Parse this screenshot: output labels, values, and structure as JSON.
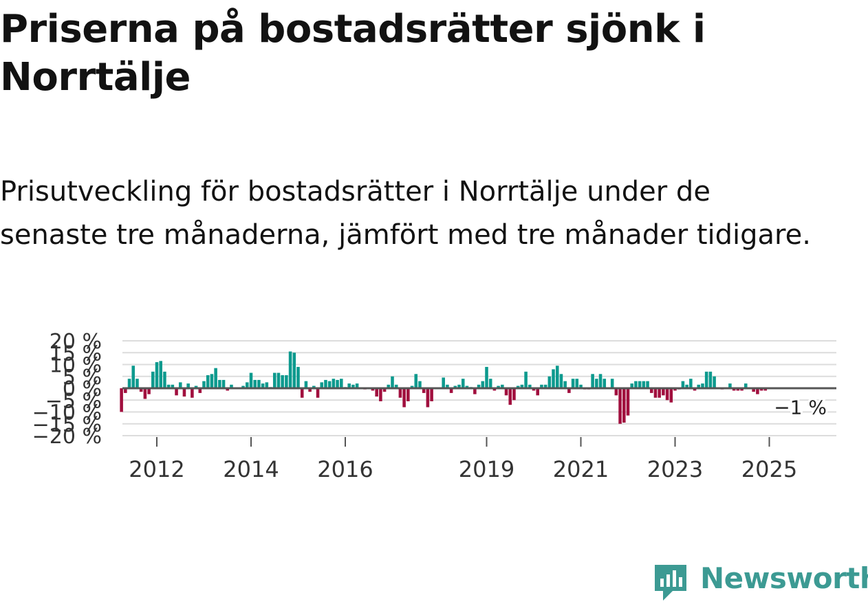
{
  "header": {
    "title": "Priserna på bostadsrätter sjönk i Norrtälje",
    "subtitle": "Prisutveckling för bostadsrätter i Norrtälje under de senaste tre månaderna, jämfört med tre månader tidigare."
  },
  "brand": {
    "name": "Newsworthy",
    "color": "#3c9a93",
    "icon": "newsworthy-logo-icon"
  },
  "colors": {
    "positive": "#0d9a8e",
    "negative": "#a10f3e",
    "grid": "#dcdcdc",
    "zero": "#555555"
  },
  "chart_data": {
    "type": "bar",
    "title": "",
    "xlabel": "",
    "ylabel": "",
    "ylim": [
      -20,
      20
    ],
    "yticks": [
      20,
      15,
      10,
      5,
      0,
      -5,
      -10,
      -15,
      -20
    ],
    "ytick_labels": [
      "20 %",
      "15 %",
      "10 %",
      "5 %",
      "0 %",
      "−5 %",
      "−10 %",
      "−15 %",
      "−20 %"
    ],
    "xticks": [
      2012,
      2014,
      2016,
      2019,
      2021,
      2023,
      2025
    ],
    "xtick_labels": [
      "2012",
      "2014",
      "2016",
      "2019",
      "2021",
      "2023",
      "2025"
    ],
    "start": {
      "year": 2011,
      "month": 4
    },
    "values": [
      -10,
      -2,
      4,
      9.5,
      4,
      -1.5,
      -4.5,
      -2.5,
      7,
      11,
      11.5,
      7,
      1.5,
      1.5,
      -3,
      2.5,
      -3.5,
      2,
      -4,
      1,
      -2,
      3,
      5.5,
      6,
      8.5,
      3.5,
      3.5,
      -1,
      1.5,
      0,
      0,
      1,
      2.5,
      6.5,
      3.5,
      3.5,
      2,
      2.5,
      0.5,
      6.5,
      6.5,
      5.5,
      5.5,
      15.5,
      15,
      9,
      -4,
      3,
      -1.5,
      1,
      -4,
      2.5,
      3.5,
      3,
      4,
      3.5,
      4,
      0.5,
      2,
      1.5,
      2,
      0,
      -0.5,
      0,
      -1,
      -3.5,
      -5.5,
      -1.5,
      1.5,
      5,
      1.5,
      -4,
      -8,
      -5.5,
      1,
      6,
      3,
      -2,
      -8,
      -5.5,
      0,
      0,
      4.5,
      1.5,
      -2,
      1,
      1.5,
      4,
      1,
      0.5,
      -2.5,
      1.5,
      3,
      9,
      4,
      -1,
      1,
      1.5,
      -3,
      -7,
      -5,
      1,
      1.5,
      7,
      1.5,
      -1,
      -3,
      1.5,
      1.5,
      5,
      8,
      9.5,
      6,
      3,
      -2,
      4,
      4,
      1.5,
      -0.5,
      -0.5,
      6,
      4,
      6,
      4,
      0,
      4,
      -3,
      -15,
      -14.5,
      -11.5,
      2,
      3,
      3,
      3,
      3,
      -2,
      -4,
      -4,
      -3,
      -5,
      -6,
      -1,
      -0.5,
      3,
      1.5,
      4,
      -1,
      1.5,
      2,
      7,
      7,
      5,
      0,
      -0.5,
      0,
      2,
      -1,
      -1,
      -1,
      2,
      0,
      -1.5,
      -2.5,
      -1,
      -1
    ],
    "last_label": "−1 %"
  }
}
